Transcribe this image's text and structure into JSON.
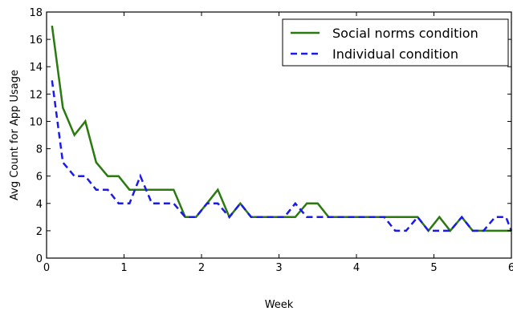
{
  "chart_data": {
    "type": "line",
    "xlabel": "Week",
    "ylabel": "Avg Count for App Usage",
    "xlim": [
      0,
      6
    ],
    "ylim": [
      0,
      18
    ],
    "xticks": [
      0,
      1,
      2,
      3,
      4,
      5,
      6
    ],
    "yticks": [
      0,
      2,
      4,
      6,
      8,
      10,
      12,
      14,
      16,
      18
    ],
    "grid": false,
    "legend_position": "top-right",
    "series": [
      {
        "name": "Social norms condition",
        "color": "#2a7a0f",
        "style": "solid",
        "x": [
          0.07,
          0.21,
          0.36,
          0.5,
          0.64,
          0.79,
          0.93,
          1.07,
          1.21,
          1.36,
          1.5,
          1.64,
          1.79,
          1.93,
          2.07,
          2.21,
          2.36,
          2.5,
          2.64,
          2.79,
          2.93,
          3.07,
          3.21,
          3.36,
          3.5,
          3.64,
          3.79,
          3.93,
          4.07,
          4.21,
          4.36,
          4.5,
          4.64,
          4.79,
          4.93,
          5.07,
          5.21,
          5.36,
          5.5,
          5.64,
          5.79,
          5.93,
          6.0
        ],
        "y": [
          17,
          11,
          9,
          10,
          7,
          6,
          6,
          5,
          5,
          5,
          5,
          5,
          3,
          3,
          4,
          5,
          3,
          4,
          3,
          3,
          3,
          3,
          3,
          4,
          4,
          3,
          3,
          3,
          3,
          3,
          3,
          3,
          3,
          3,
          2,
          3,
          2,
          3,
          2,
          2,
          2,
          2,
          2
        ]
      },
      {
        "name": "Individual condition",
        "color": "#1a1aee",
        "style": "dashed",
        "x": [
          0.07,
          0.21,
          0.36,
          0.5,
          0.64,
          0.79,
          0.93,
          1.07,
          1.21,
          1.36,
          1.5,
          1.64,
          1.79,
          1.93,
          2.07,
          2.21,
          2.36,
          2.5,
          2.64,
          2.79,
          2.93,
          3.07,
          3.21,
          3.36,
          3.5,
          3.64,
          3.79,
          3.93,
          4.07,
          4.21,
          4.36,
          4.5,
          4.64,
          4.79,
          4.93,
          5.07,
          5.21,
          5.36,
          5.5,
          5.64,
          5.79,
          5.93,
          6.0
        ],
        "y": [
          13,
          7,
          6,
          6,
          5,
          5,
          4,
          4,
          6,
          4,
          4,
          4,
          3,
          3,
          4,
          4,
          3,
          4,
          3,
          3,
          3,
          3,
          4,
          3,
          3,
          3,
          3,
          3,
          3,
          3,
          3,
          2,
          2,
          3,
          2,
          2,
          2,
          3,
          2,
          2,
          3,
          3,
          2
        ]
      }
    ]
  }
}
